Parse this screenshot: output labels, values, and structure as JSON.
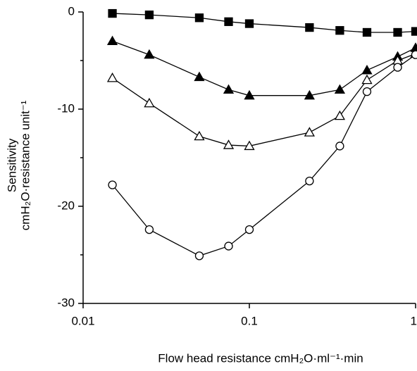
{
  "chart_data": {
    "type": "line",
    "xlabel": "Flow head resistance  cmH₂O·ml⁻¹·min",
    "ylabel": [
      "Sensitivity",
      "cmH₂O·resistance unit⁻¹"
    ],
    "x": [
      0.015,
      0.025,
      0.05,
      0.075,
      0.1,
      0.23,
      0.35,
      0.51,
      0.78,
      1.0
    ],
    "series": [
      {
        "color": "#000000",
        "marker": "square-filled",
        "values": [
          -0.15,
          -0.3,
          -0.6,
          -1.0,
          -1.2,
          -1.6,
          -1.9,
          -2.1,
          -2.1,
          -2.0
        ]
      },
      {
        "color": "#000000",
        "marker": "triangle-filled",
        "values": [
          -3.0,
          -4.4,
          -6.7,
          -8.0,
          -8.6,
          -8.6,
          -8.0,
          -6.0,
          -4.6,
          -3.7
        ]
      },
      {
        "color": "#000000",
        "marker": "triangle-open",
        "values": [
          -6.8,
          -9.4,
          -12.8,
          -13.7,
          -13.8,
          -12.4,
          -10.7,
          -7.0,
          -5.0,
          -4.3
        ]
      },
      {
        "color": "#000000",
        "marker": "circle-open",
        "values": [
          -17.8,
          -22.4,
          -25.1,
          -24.1,
          -22.4,
          -17.4,
          -13.8,
          -8.2,
          -5.7,
          -4.4
        ]
      }
    ],
    "xscale": "log",
    "xlim": [
      0.01,
      1
    ],
    "xticks": [
      0.01,
      0.1,
      1
    ],
    "ylim": [
      -30,
      0
    ],
    "yticks": [
      0,
      -10,
      -20,
      -30
    ],
    "yminorticks": [
      -5,
      -15,
      -25
    ],
    "grid": false
  }
}
